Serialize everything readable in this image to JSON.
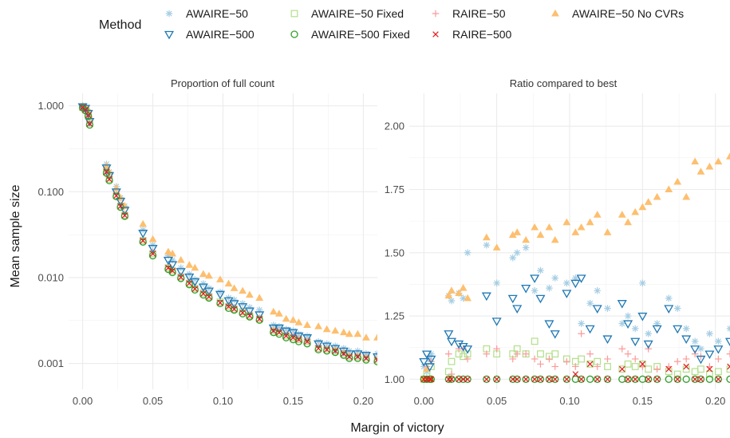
{
  "chart_data": {
    "type": "scatter",
    "xlabel": "Margin of victory",
    "ylabel": "Mean sample size",
    "legend": {
      "title": "Method",
      "position": "top",
      "items": [
        {
          "name": "AWAIRE−50",
          "shape": "asterisk",
          "color": "#a6cee3"
        },
        {
          "name": "AWAIRE−50 Fixed",
          "shape": "square",
          "color": "#b2df8a"
        },
        {
          "name": "RAIRE−50",
          "shape": "plus",
          "color": "#fb9a99"
        },
        {
          "name": "AWAIRE−50 No CVRs",
          "shape": "triangle-up",
          "color": "#fdbf6f"
        },
        {
          "name": "AWAIRE−500",
          "shape": "triangle-down",
          "color": "#1f78b4"
        },
        {
          "name": "AWAIRE−500 Fixed",
          "shape": "circle",
          "color": "#33a02c"
        },
        {
          "name": "RAIRE−500",
          "shape": "cross",
          "color": "#e31a1c"
        }
      ]
    },
    "panels": [
      {
        "title": "Proportion of full count",
        "y_scale": "log",
        "xlim": [
          -0.01,
          0.21
        ],
        "ylim": [
          0.0005,
          1.4
        ],
        "x_ticks": [
          "0.00",
          "0.05",
          "0.10",
          "0.15",
          "0.20"
        ],
        "x_tick_values": [
          0,
          0.05,
          0.1,
          0.15,
          0.2
        ],
        "y_ticks": [
          "0.001",
          "0.010",
          "0.100",
          "1.000"
        ],
        "y_tick_values": [
          0.001,
          0.01,
          0.1,
          1.0
        ],
        "x": [
          0.0,
          0.002,
          0.004,
          0.005,
          0.017,
          0.019,
          0.024,
          0.027,
          0.03,
          0.043,
          0.05,
          0.061,
          0.064,
          0.07,
          0.076,
          0.08,
          0.086,
          0.09,
          0.098,
          0.104,
          0.108,
          0.114,
          0.119,
          0.126,
          0.136,
          0.14,
          0.145,
          0.15,
          0.154,
          0.16,
          0.168,
          0.174,
          0.18,
          0.186,
          0.19,
          0.196,
          0.202,
          0.21
        ],
        "series": [
          {
            "name": "AWAIRE−50",
            "values": [
              1.0,
              0.95,
              0.85,
              0.7,
              0.21,
              0.17,
              0.115,
              0.085,
              0.068,
              0.036,
              0.024,
              0.018,
              0.016,
              0.013,
              0.011,
              0.0095,
              0.0085,
              0.0075,
              0.0068,
              0.0058,
              0.0055,
              0.005,
              0.0045,
              0.0042,
              0.0028,
              0.0027,
              0.0025,
              0.0024,
              0.0022,
              0.0021,
              0.0018,
              0.0017,
              0.0016,
              0.0015,
              0.0014,
              0.0014,
              0.0013,
              0.0013
            ]
          },
          {
            "name": "AWAIRE−50 Fixed",
            "values": [
              0.96,
              0.9,
              0.78,
              0.63,
              0.17,
              0.14,
              0.09,
              0.068,
              0.053,
              0.027,
              0.019,
              0.013,
              0.012,
              0.0102,
              0.0086,
              0.0075,
              0.0066,
              0.006,
              0.0052,
              0.0046,
              0.0043,
              0.004,
              0.0036,
              0.0033,
              0.0024,
              0.0023,
              0.0021,
              0.002,
              0.0019,
              0.0018,
              0.0015,
              0.00145,
              0.0014,
              0.0013,
              0.0012,
              0.0012,
              0.00115,
              0.0011
            ]
          },
          {
            "name": "RAIRE−50",
            "values": [
              0.97,
              0.92,
              0.8,
              0.64,
              0.18,
              0.145,
              0.095,
              0.07,
              0.055,
              0.028,
              0.02,
              0.0135,
              0.0125,
              0.0105,
              0.009,
              0.0078,
              0.0069,
              0.0062,
              0.0054,
              0.0048,
              0.0045,
              0.0041,
              0.0037,
              0.0034,
              0.0025,
              0.0024,
              0.0022,
              0.0021,
              0.00195,
              0.00185,
              0.0016,
              0.0015,
              0.00145,
              0.00135,
              0.00125,
              0.00125,
              0.0012,
              0.00115
            ]
          },
          {
            "name": "AWAIRE−50 No CVRs",
            "values": [
              1.0,
              0.98,
              0.9,
              0.75,
              0.2,
              0.17,
              0.11,
              0.085,
              0.068,
              0.042,
              0.028,
              0.02,
              0.019,
              0.016,
              0.014,
              0.013,
              0.011,
              0.0105,
              0.0095,
              0.0085,
              0.0075,
              0.007,
              0.0063,
              0.0058,
              0.004,
              0.0038,
              0.0033,
              0.0032,
              0.003,
              0.0028,
              0.0027,
              0.0025,
              0.0024,
              0.0023,
              0.0022,
              0.0022,
              0.002,
              0.002
            ]
          },
          {
            "name": "AWAIRE−500",
            "values": [
              0.98,
              0.94,
              0.82,
              0.66,
              0.19,
              0.155,
              0.1,
              0.078,
              0.061,
              0.033,
              0.022,
              0.016,
              0.0142,
              0.0118,
              0.0102,
              0.009,
              0.0078,
              0.007,
              0.0064,
              0.0054,
              0.005,
              0.0046,
              0.0041,
              0.0037,
              0.0026,
              0.0026,
              0.0024,
              0.0023,
              0.0021,
              0.002,
              0.0017,
              0.0016,
              0.0015,
              0.0014,
              0.0013,
              0.0013,
              0.00125,
              0.0012
            ]
          },
          {
            "name": "AWAIRE−500 Fixed",
            "values": [
              0.95,
              0.88,
              0.76,
              0.6,
              0.165,
              0.135,
              0.088,
              0.066,
              0.052,
              0.026,
              0.018,
              0.0125,
              0.0115,
              0.0098,
              0.0083,
              0.0072,
              0.0063,
              0.0058,
              0.005,
              0.0044,
              0.0042,
              0.0038,
              0.0035,
              0.0032,
              0.0023,
              0.0022,
              0.002,
              0.0019,
              0.0018,
              0.0017,
              0.00145,
              0.0014,
              0.00135,
              0.00125,
              0.00115,
              0.00115,
              0.0011,
              0.00105
            ]
          },
          {
            "name": "RAIRE−500",
            "values": [
              0.96,
              0.9,
              0.78,
              0.62,
              0.17,
              0.14,
              0.09,
              0.068,
              0.053,
              0.027,
              0.019,
              0.013,
              0.012,
              0.0101,
              0.0086,
              0.0074,
              0.0065,
              0.006,
              0.0051,
              0.0046,
              0.0043,
              0.0039,
              0.0036,
              0.0033,
              0.0024,
              0.0023,
              0.0021,
              0.002,
              0.0019,
              0.0018,
              0.0015,
              0.00145,
              0.0014,
              0.0013,
              0.0012,
              0.0012,
              0.00115,
              0.0011
            ]
          }
        ]
      },
      {
        "title": "Ratio compared to best",
        "y_scale": "linear",
        "xlim": [
          -0.01,
          0.21
        ],
        "ylim": [
          0.96,
          2.13
        ],
        "x_ticks": [
          "0.00",
          "0.05",
          "0.10",
          "0.15",
          "0.20"
        ],
        "x_tick_values": [
          0,
          0.05,
          0.1,
          0.15,
          0.2
        ],
        "y_ticks": [
          "1.00",
          "1.25",
          "1.50",
          "1.75",
          "2.00"
        ],
        "y_tick_values": [
          1.0,
          1.25,
          1.5,
          1.75,
          2.0
        ],
        "x": [
          0.0,
          0.002,
          0.004,
          0.005,
          0.017,
          0.019,
          0.024,
          0.027,
          0.03,
          0.043,
          0.05,
          0.061,
          0.064,
          0.07,
          0.076,
          0.08,
          0.086,
          0.09,
          0.098,
          0.104,
          0.108,
          0.114,
          0.119,
          0.126,
          0.136,
          0.14,
          0.145,
          0.15,
          0.154,
          0.16,
          0.168,
          0.174,
          0.18,
          0.186,
          0.19,
          0.196,
          0.202,
          0.21
        ],
        "series": [
          {
            "name": "AWAIRE−50",
            "values": [
              1.05,
              1.03,
              1.08,
              1.1,
              1.33,
              1.31,
              1.34,
              1.32,
              1.5,
              1.53,
              1.38,
              1.48,
              1.5,
              1.52,
              1.35,
              1.43,
              1.36,
              1.4,
              1.38,
              1.4,
              1.22,
              1.3,
              1.35,
              1.28,
              1.22,
              1.25,
              1.2,
              1.38,
              1.18,
              1.22,
              1.32,
              1.28,
              1.2,
              1.15,
              1.12,
              1.18,
              1.15,
              1.2
            ]
          },
          {
            "name": "AWAIRE−50 Fixed",
            "values": [
              1.0,
              1.02,
              1.0,
              1.05,
              1.03,
              1.07,
              1.1,
              1.09,
              1.1,
              1.12,
              1.1,
              1.1,
              1.12,
              1.1,
              1.15,
              1.1,
              1.09,
              1.1,
              1.08,
              1.07,
              1.08,
              1.06,
              1.07,
              1.05,
              1.04,
              1.06,
              1.05,
              1.06,
              1.04,
              1.05,
              1.03,
              1.02,
              1.04,
              1.03,
              1.04,
              1.02,
              1.03,
              1.04
            ]
          },
          {
            "name": "RAIRE−50",
            "values": [
              1.0,
              1.05,
              1.0,
              1.07,
              1.1,
              1.02,
              1.12,
              1.12,
              1.08,
              1.1,
              1.12,
              1.08,
              1.1,
              1.1,
              1.08,
              1.06,
              1.08,
              1.05,
              1.07,
              1.05,
              1.18,
              1.1,
              1.05,
              1.08,
              1.12,
              1.1,
              1.08,
              1.05,
              1.12,
              1.04,
              1.05,
              1.07,
              1.08,
              1.1,
              1.09,
              1.05,
              1.08,
              1.1
            ]
          },
          {
            "name": "AWAIRE−50 No CVRs",
            "values": [
              1.0,
              1.04,
              1.0,
              1.0,
              1.33,
              1.35,
              1.34,
              1.36,
              1.32,
              1.56,
              1.52,
              1.57,
              1.58,
              1.55,
              1.6,
              1.57,
              1.6,
              1.55,
              1.62,
              1.58,
              1.6,
              1.62,
              1.65,
              1.58,
              1.65,
              1.62,
              1.66,
              1.68,
              1.7,
              1.72,
              1.75,
              1.78,
              1.72,
              1.86,
              1.82,
              1.84,
              1.86,
              1.88
            ]
          },
          {
            "name": "AWAIRE−500",
            "values": [
              1.07,
              1.1,
              1.05,
              1.08,
              1.18,
              1.15,
              1.14,
              1.13,
              1.12,
              1.33,
              1.23,
              1.32,
              1.28,
              1.36,
              1.4,
              1.32,
              1.22,
              1.18,
              1.34,
              1.38,
              1.4,
              1.2,
              1.28,
              1.16,
              1.3,
              1.22,
              1.15,
              1.25,
              1.14,
              1.2,
              1.28,
              1.2,
              1.16,
              1.12,
              1.08,
              1.1,
              1.12,
              1.15
            ]
          },
          {
            "name": "AWAIRE−500 Fixed",
            "values": [
              1.0,
              1.0,
              1.0,
              1.0,
              1.0,
              1.0,
              1.0,
              1.0,
              1.0,
              1.0,
              1.0,
              1.0,
              1.0,
              1.0,
              1.0,
              1.0,
              1.0,
              1.0,
              1.0,
              1.0,
              1.0,
              1.0,
              1.0,
              1.0,
              1.0,
              1.0,
              1.0,
              1.0,
              1.0,
              1.0,
              1.0,
              1.0,
              1.0,
              1.0,
              1.0,
              1.0,
              1.0,
              1.0
            ]
          },
          {
            "name": "RAIRE−500",
            "values": [
              1.0,
              1.0,
              1.0,
              1.0,
              1.0,
              1.0,
              1.0,
              1.0,
              1.0,
              1.0,
              1.0,
              1.0,
              1.0,
              1.0,
              1.0,
              1.0,
              1.0,
              1.0,
              1.0,
              1.02,
              1.0,
              1.06,
              1.0,
              1.0,
              1.04,
              1.0,
              1.0,
              1.06,
              1.0,
              1.0,
              1.04,
              1.0,
              1.05,
              1.0,
              1.0,
              1.04,
              1.0,
              1.05
            ]
          }
        ]
      }
    ]
  }
}
